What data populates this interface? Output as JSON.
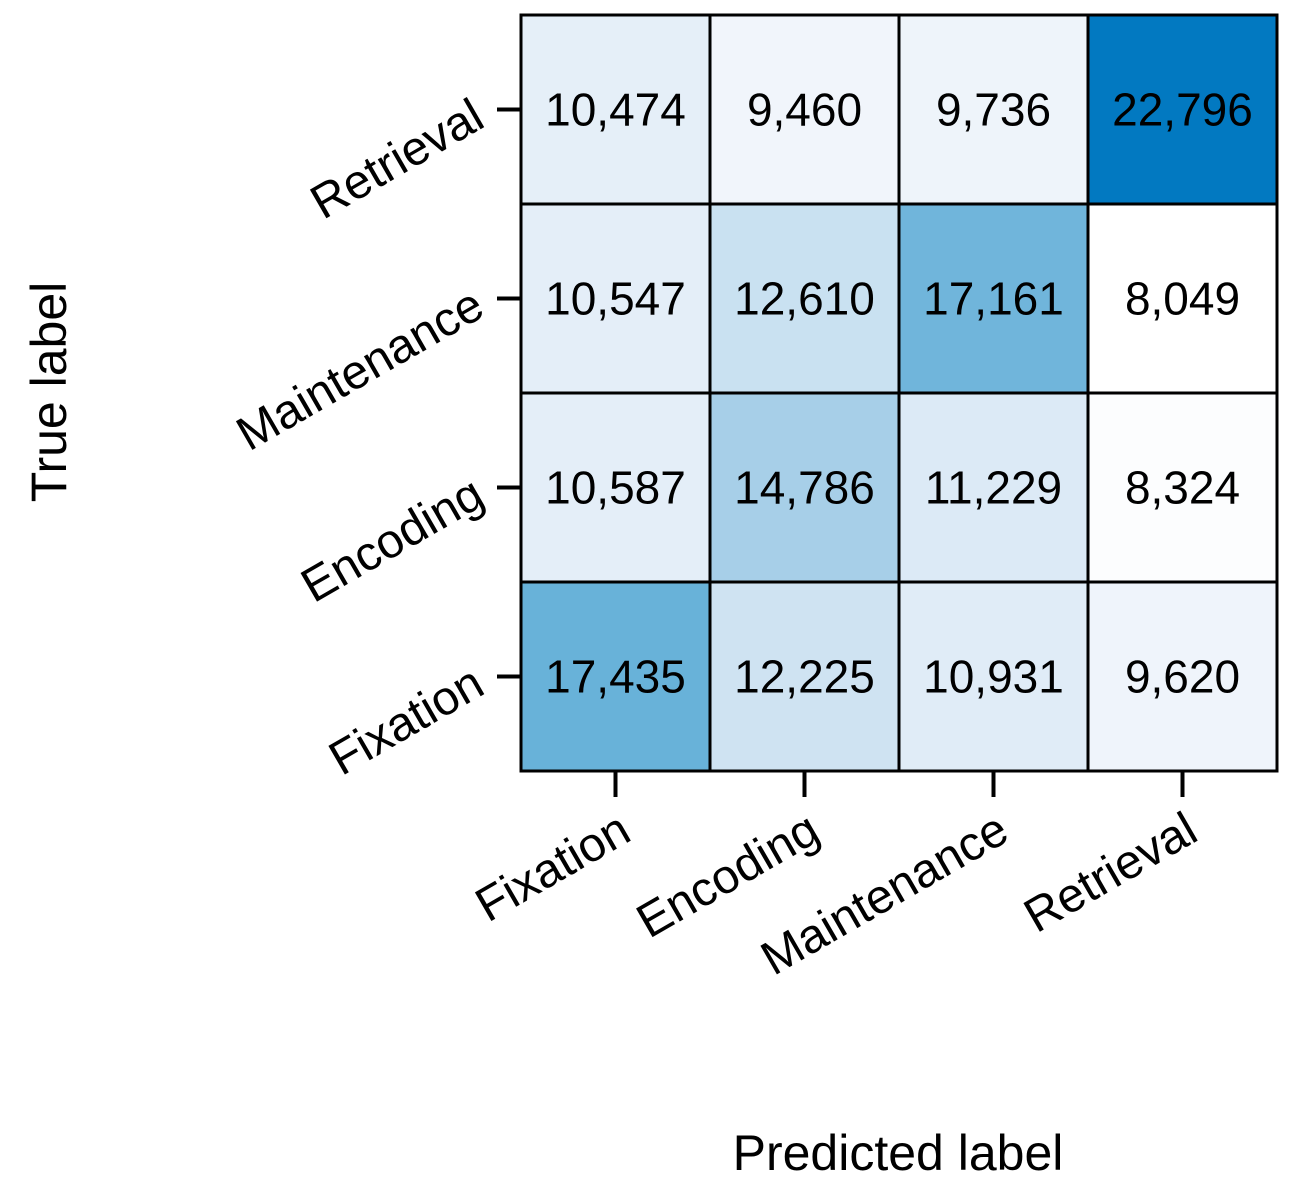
{
  "chart_data": {
    "type": "heatmap",
    "title": "",
    "xlabel": "Predicted label",
    "ylabel": "True label",
    "x_categories": [
      "Fixation",
      "Encoding",
      "Maintenance",
      "Retrieval"
    ],
    "y_categories_top_to_bottom": [
      "Retrieval",
      "Maintenance",
      "Encoding",
      "Fixation"
    ],
    "values_top_to_bottom": [
      [
        10474,
        9460,
        9736,
        22796
      ],
      [
        10547,
        12610,
        17161,
        8049
      ],
      [
        10587,
        14786,
        11229,
        8324
      ],
      [
        17435,
        12225,
        10931,
        9620
      ]
    ],
    "value_labels_top_to_bottom": [
      [
        "10,474",
        "9,460",
        "9,736",
        "22,796"
      ],
      [
        "10,547",
        "12,610",
        "17,161",
        "8,049"
      ],
      [
        "10,587",
        "14,786",
        "11,229",
        "8,324"
      ],
      [
        "17,435",
        "12,225",
        "10,931",
        "9,620"
      ]
    ],
    "colormap": "Blues",
    "color_low": "#ffffff",
    "color_high": "#0279c1",
    "grid": true,
    "legend": "none"
  }
}
